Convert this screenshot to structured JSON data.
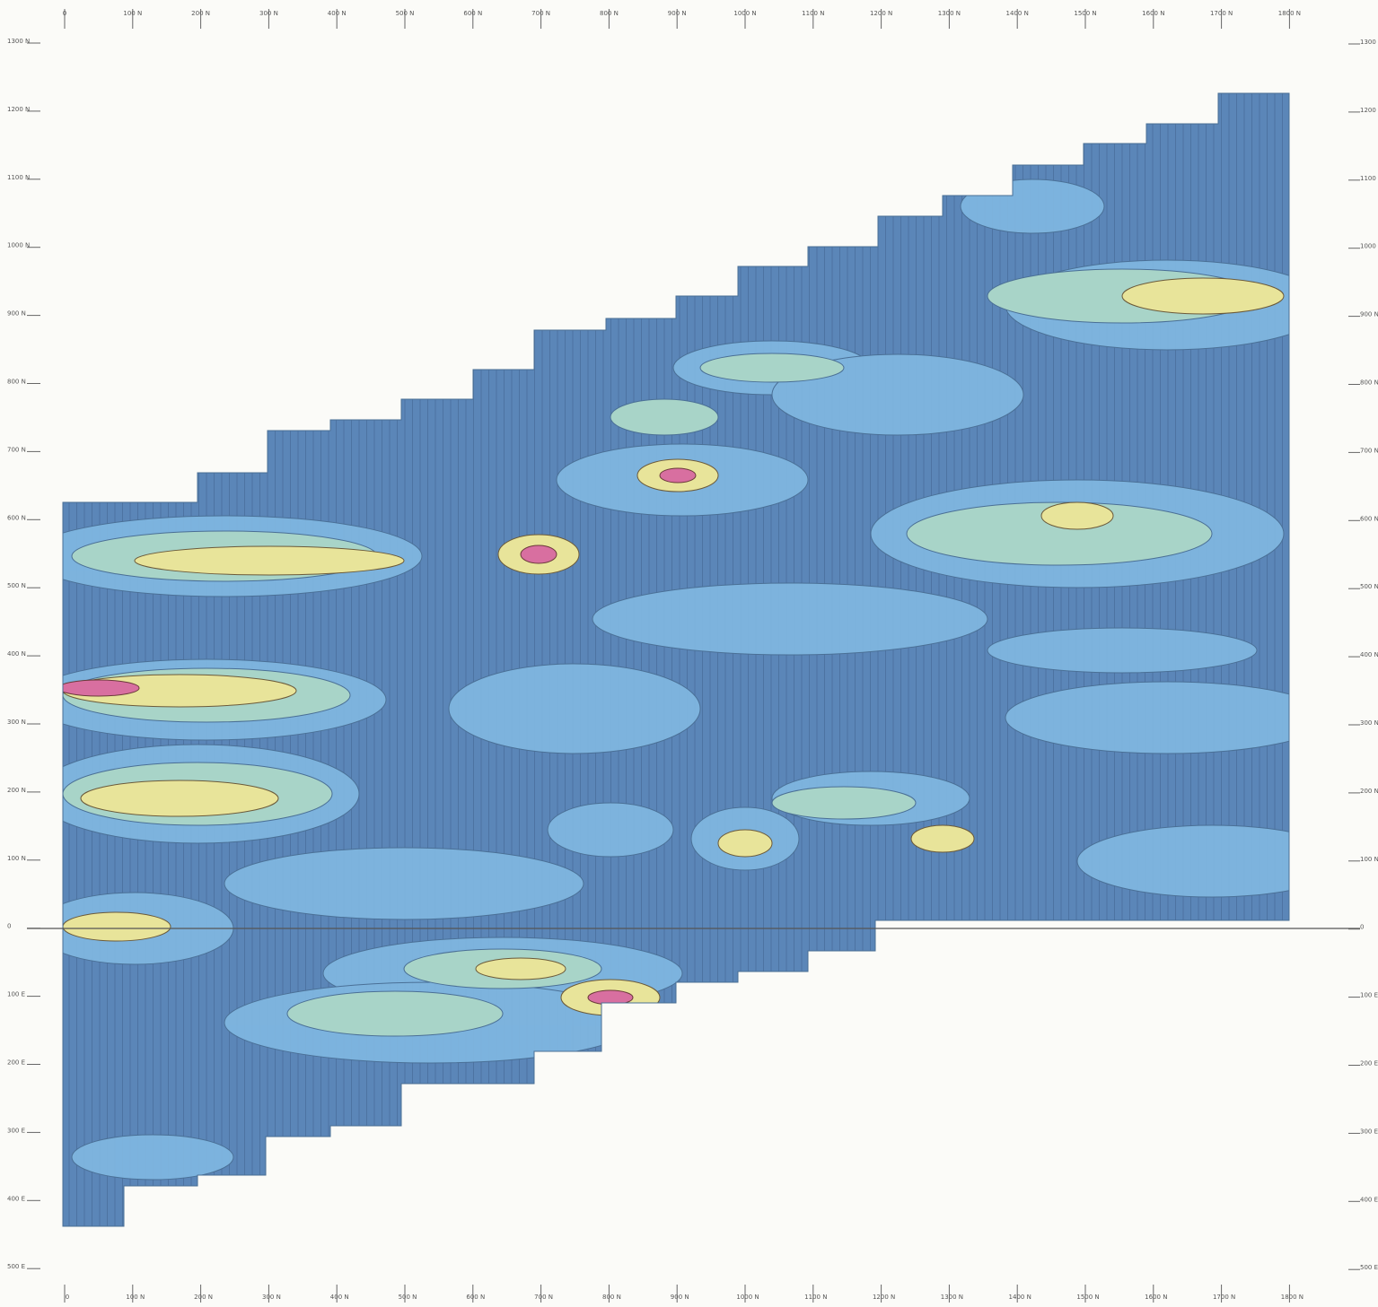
{
  "map": {
    "top_labels": [
      "0",
      "100 N",
      "200 N",
      "300 N",
      "400 N",
      "500 N",
      "600 N",
      "700 N",
      "800 N",
      "900 N",
      "1000 N",
      "1100 N",
      "1200 N",
      "1300 N",
      "1400 N",
      "1500 N",
      "1600 N",
      "1700 N",
      "1800 N"
    ],
    "bottom_labels": [
      "0",
      "100 N",
      "200 N",
      "300 N",
      "400 N",
      "500 N",
      "600 N",
      "700 N",
      "800 N",
      "900 N",
      "1000 N",
      "1100 N",
      "1200 N",
      "1300 N",
      "1400 N",
      "1500 N",
      "1600 N",
      "1700 N",
      "1800 N"
    ],
    "left_labels": [
      "1300 N",
      "1200 N",
      "1100 N",
      "1000 N",
      "900 N",
      "800 N",
      "700 N",
      "600 N",
      "500 N",
      "400 N",
      "300 N",
      "200 N",
      "100 N",
      "0",
      "100 E",
      "200 E",
      "300 E",
      "400 E",
      "500 E"
    ],
    "right_labels": [
      "1300 N",
      "1200 N",
      "1100 N",
      "1000 N",
      "900 N",
      "800 N",
      "700 N",
      "600 N",
      "500 N",
      "400 N",
      "300 N",
      "200 N",
      "100 N",
      "0",
      "100 E",
      "200 E",
      "300 E",
      "400 E",
      "500 E"
    ]
  }
}
